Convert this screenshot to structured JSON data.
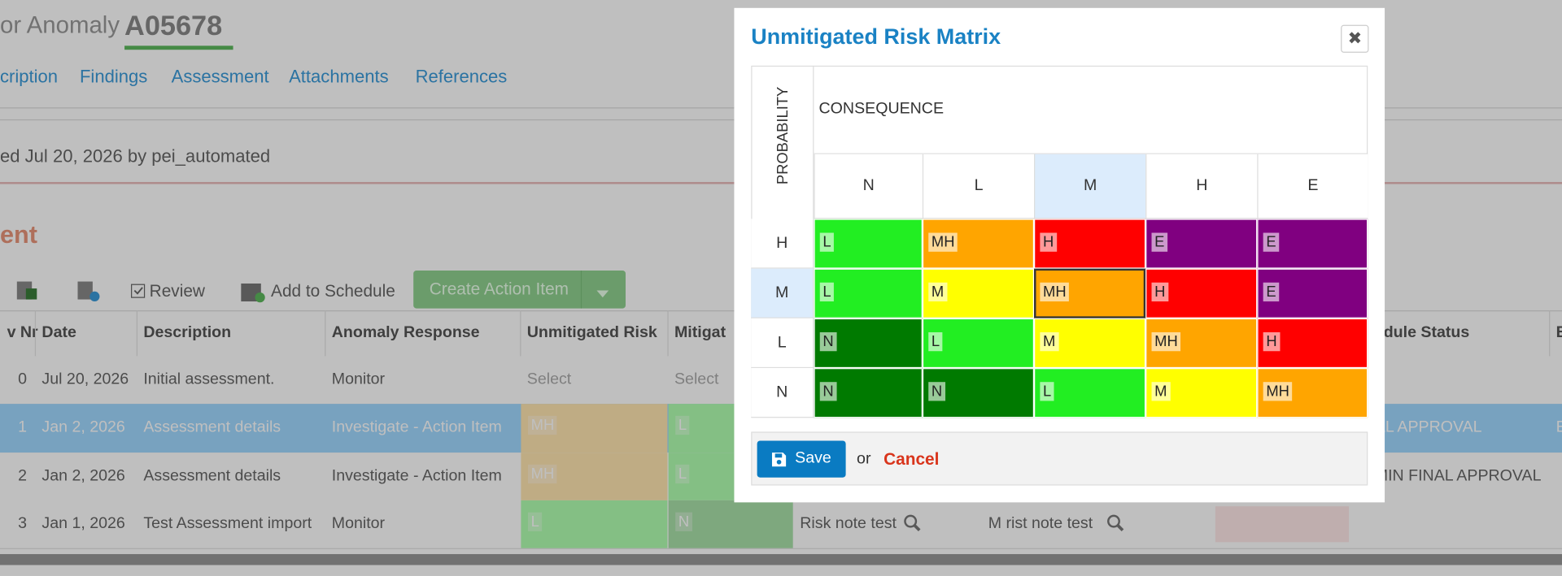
{
  "page": {
    "title_prefix": "or Anomaly",
    "anomaly_id": "A05678",
    "tabs": [
      "cription",
      "Findings",
      "Assessment",
      "Attachments",
      "References"
    ],
    "created_line": "ed Jul 20, 2026 by pei_automated",
    "section_title": "ent",
    "toolbar": {
      "review": "Review",
      "add_to_schedule": "Add to Schedule",
      "create_action_item": "Create Action Item"
    },
    "table": {
      "headers": {
        "nr": "v Nr",
        "date": "Date",
        "description": "Description",
        "response": "Anomaly Response",
        "unmitigated": "Unmitigated Risk",
        "mitigated": "Mitigat",
        "status": "edule Status",
        "extra": "E"
      },
      "rows": [
        {
          "nr": "0",
          "date": "Jul 20, 2026",
          "description": "Initial assessment.",
          "response": "Monitor",
          "unmitigated": {
            "label": "Select"
          },
          "mitigated": {
            "label": "Select"
          }
        },
        {
          "nr": "1",
          "date": "Jan 2, 2026",
          "description": "Assessment details",
          "response": "Investigate - Action Item",
          "unmitigated": {
            "label": "MH",
            "color": "#ffe6b0"
          },
          "mitigated": {
            "label": "L",
            "color": "#b0ffb0"
          },
          "status": "AL APPROVAL",
          "extra": "E",
          "selected": true
        },
        {
          "nr": "2",
          "date": "Jan 2, 2026",
          "description": "Assessment details",
          "response": "Investigate - Action Item",
          "unmitigated": {
            "label": "MH",
            "color": "#ffe6b0"
          },
          "mitigated": {
            "label": "L",
            "color": "#b0ffb0"
          },
          "status": "MIN FINAL APPROVAL"
        },
        {
          "nr": "3",
          "date": "Jan 1, 2026",
          "description": "Test Assessment import",
          "response": "Monitor",
          "unmitigated": {
            "label": "L",
            "color": "#b0ffb0"
          },
          "mitigated": {
            "label": "N",
            "color": "#a9e0a9"
          },
          "risk_note": "Risk note test",
          "mitigated_note": "M rist note test"
        }
      ]
    }
  },
  "modal": {
    "title": "Unmitigated Risk Matrix",
    "close": "✖",
    "probability_label": "PROBABILITY",
    "consequence_label": "CONSEQUENCE",
    "consequences": [
      "N",
      "L",
      "M",
      "H",
      "E"
    ],
    "rows": [
      {
        "probability": "H",
        "cells": [
          {
            "label": "L",
            "color": "#22ee22"
          },
          {
            "label": "MH",
            "color": "#ffa500"
          },
          {
            "label": "H",
            "color": "#ff0000"
          },
          {
            "label": "E",
            "color": "#800080"
          },
          {
            "label": "E",
            "color": "#800080"
          }
        ]
      },
      {
        "probability": "M",
        "cells": [
          {
            "label": "L",
            "color": "#22ee22"
          },
          {
            "label": "M",
            "color": "#ffff00"
          },
          {
            "label": "MH",
            "color": "#ffa500",
            "selected": true
          },
          {
            "label": "H",
            "color": "#ff0000"
          },
          {
            "label": "E",
            "color": "#800080"
          }
        ]
      },
      {
        "probability": "L",
        "cells": [
          {
            "label": "N",
            "color": "#007a00"
          },
          {
            "label": "L",
            "color": "#22ee22"
          },
          {
            "label": "M",
            "color": "#ffff00"
          },
          {
            "label": "MH",
            "color": "#ffa500"
          },
          {
            "label": "H",
            "color": "#ff0000"
          }
        ]
      },
      {
        "probability": "N",
        "cells": [
          {
            "label": "N",
            "color": "#007a00"
          },
          {
            "label": "N",
            "color": "#007a00"
          },
          {
            "label": "L",
            "color": "#22ee22"
          },
          {
            "label": "M",
            "color": "#ffff00"
          },
          {
            "label": "MH",
            "color": "#ffa500"
          }
        ]
      }
    ],
    "save": "Save",
    "or": "or",
    "cancel": "Cancel"
  }
}
